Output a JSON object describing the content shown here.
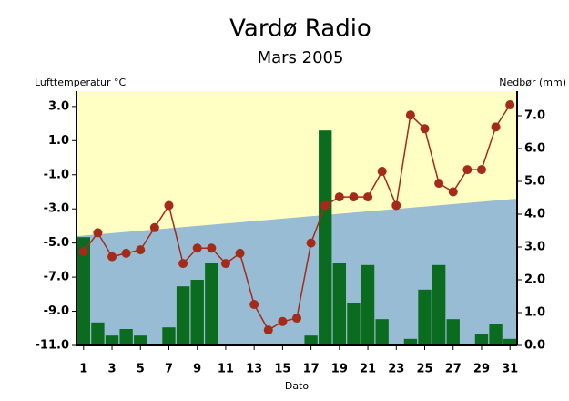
{
  "chart_data": {
    "type": "bar_line",
    "title": "Vardø Radio",
    "subtitle": "Mars 2005",
    "y_label": "Lufttemperatur °C",
    "y2_label": "Nedbør (mm)",
    "x_label": "Dato",
    "x": [
      1,
      2,
      3,
      4,
      5,
      6,
      7,
      8,
      9,
      10,
      11,
      12,
      13,
      14,
      15,
      16,
      17,
      18,
      19,
      20,
      21,
      22,
      23,
      24,
      25,
      26,
      27,
      28,
      29,
      30,
      31
    ],
    "xlim": [
      0.5,
      31.5
    ],
    "xticks": [
      1,
      3,
      5,
      7,
      9,
      11,
      13,
      15,
      17,
      19,
      21,
      23,
      25,
      27,
      29,
      31
    ],
    "ylim": [
      -11,
      3.9
    ],
    "yticks": [
      {
        "value": -11,
        "label": "-11.0"
      },
      {
        "value": -9,
        "label": "-9.0"
      },
      {
        "value": -7,
        "label": "-7.0"
      },
      {
        "value": -5,
        "label": "-5.0"
      },
      {
        "value": -3,
        "label": "-3.0"
      },
      {
        "value": -1,
        "label": "-1.0"
      },
      {
        "value": 1,
        "label": "1.0"
      },
      {
        "value": 3,
        "label": "3.0"
      }
    ],
    "y2lim": [
      0,
      7.75
    ],
    "y2ticks": [
      {
        "value": 0,
        "label": "0.0"
      },
      {
        "value": 1,
        "label": "1.0"
      },
      {
        "value": 2,
        "label": "2.0"
      },
      {
        "value": 3,
        "label": "3.0"
      },
      {
        "value": 4,
        "label": "4.0"
      },
      {
        "value": 5,
        "label": "5.0"
      },
      {
        "value": 6,
        "label": "6.0"
      },
      {
        "value": 7,
        "label": "7.0"
      }
    ],
    "background": {
      "upper_color": "#ffffc4",
      "lower_color": "#98bcd4",
      "x": [
        0.5,
        31.5
      ],
      "values": [
        -4.6,
        -2.4
      ]
    },
    "series": [
      {
        "kind": "bar",
        "axis": "y2",
        "color": "#0b6b1f",
        "values": [
          3.3,
          0.7,
          0.3,
          0.5,
          0.3,
          0,
          0.55,
          1.8,
          2.0,
          2.5,
          0,
          0,
          0,
          0,
          0,
          0,
          0.3,
          6.55,
          2.5,
          1.3,
          2.45,
          0.8,
          0,
          0.2,
          1.7,
          2.45,
          0.8,
          0,
          0.35,
          0.65,
          0.2
        ]
      },
      {
        "kind": "line",
        "axis": "y",
        "color": "#a52a1a",
        "values": [
          -5.5,
          -4.4,
          -5.8,
          -5.6,
          -5.4,
          -4.1,
          -2.8,
          -6.2,
          -5.3,
          -5.3,
          -6.2,
          -5.6,
          -8.6,
          -10.1,
          -9.6,
          -9.4,
          -5.0,
          -2.8,
          -2.3,
          -2.3,
          -2.3,
          -0.8,
          -2.8,
          2.5,
          1.7,
          -1.5,
          -2.0,
          -0.7,
          -0.7,
          1.8,
          3.1
        ]
      }
    ]
  }
}
